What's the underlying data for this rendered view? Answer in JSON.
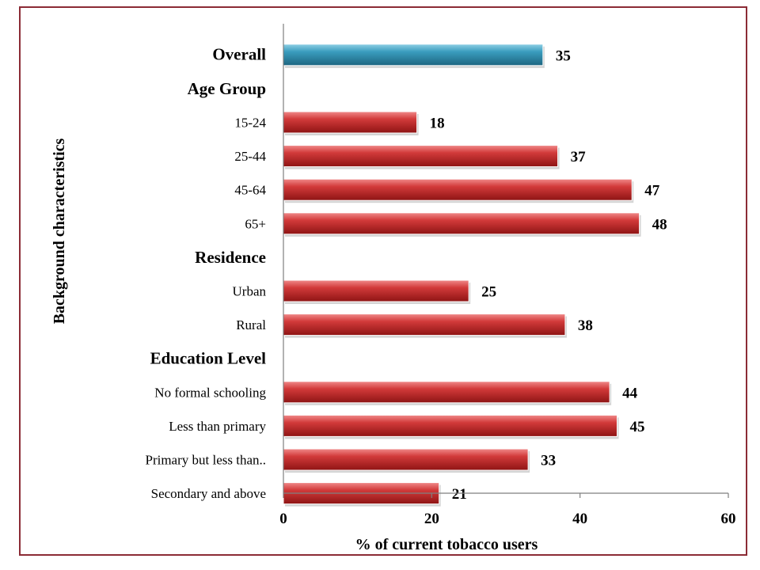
{
  "chart_data": {
    "type": "bar",
    "orientation": "horizontal",
    "xlabel": "% of current tobacco users",
    "ylabel": "Background characteristics",
    "xlim": [
      0,
      60
    ],
    "xticks": [
      0,
      20,
      40,
      60
    ],
    "grid": false,
    "legend": "none",
    "colors": {
      "overall": "#2e8fae",
      "default": "#c92a2a"
    },
    "rows": [
      {
        "kind": "bar",
        "label": "Overall",
        "bold": true,
        "value": 35,
        "color_key": "overall"
      },
      {
        "kind": "group",
        "label": "Age Group"
      },
      {
        "kind": "bar",
        "label": "15-24",
        "value": 18
      },
      {
        "kind": "bar",
        "label": "25-44",
        "value": 37
      },
      {
        "kind": "bar",
        "label": "45-64",
        "value": 47
      },
      {
        "kind": "bar",
        "label": "65+",
        "value": 48
      },
      {
        "kind": "group",
        "label": "Residence"
      },
      {
        "kind": "bar",
        "label": "Urban",
        "value": 25
      },
      {
        "kind": "bar",
        "label": "Rural",
        "value": 38
      },
      {
        "kind": "group",
        "label": "Education Level"
      },
      {
        "kind": "bar",
        "label": "No formal schooling",
        "value": 44
      },
      {
        "kind": "bar",
        "label": "Less than primary",
        "value": 45
      },
      {
        "kind": "bar",
        "label": "Primary but less than..",
        "value": 33
      },
      {
        "kind": "bar",
        "label": "Secondary and above",
        "value": 21
      }
    ]
  }
}
